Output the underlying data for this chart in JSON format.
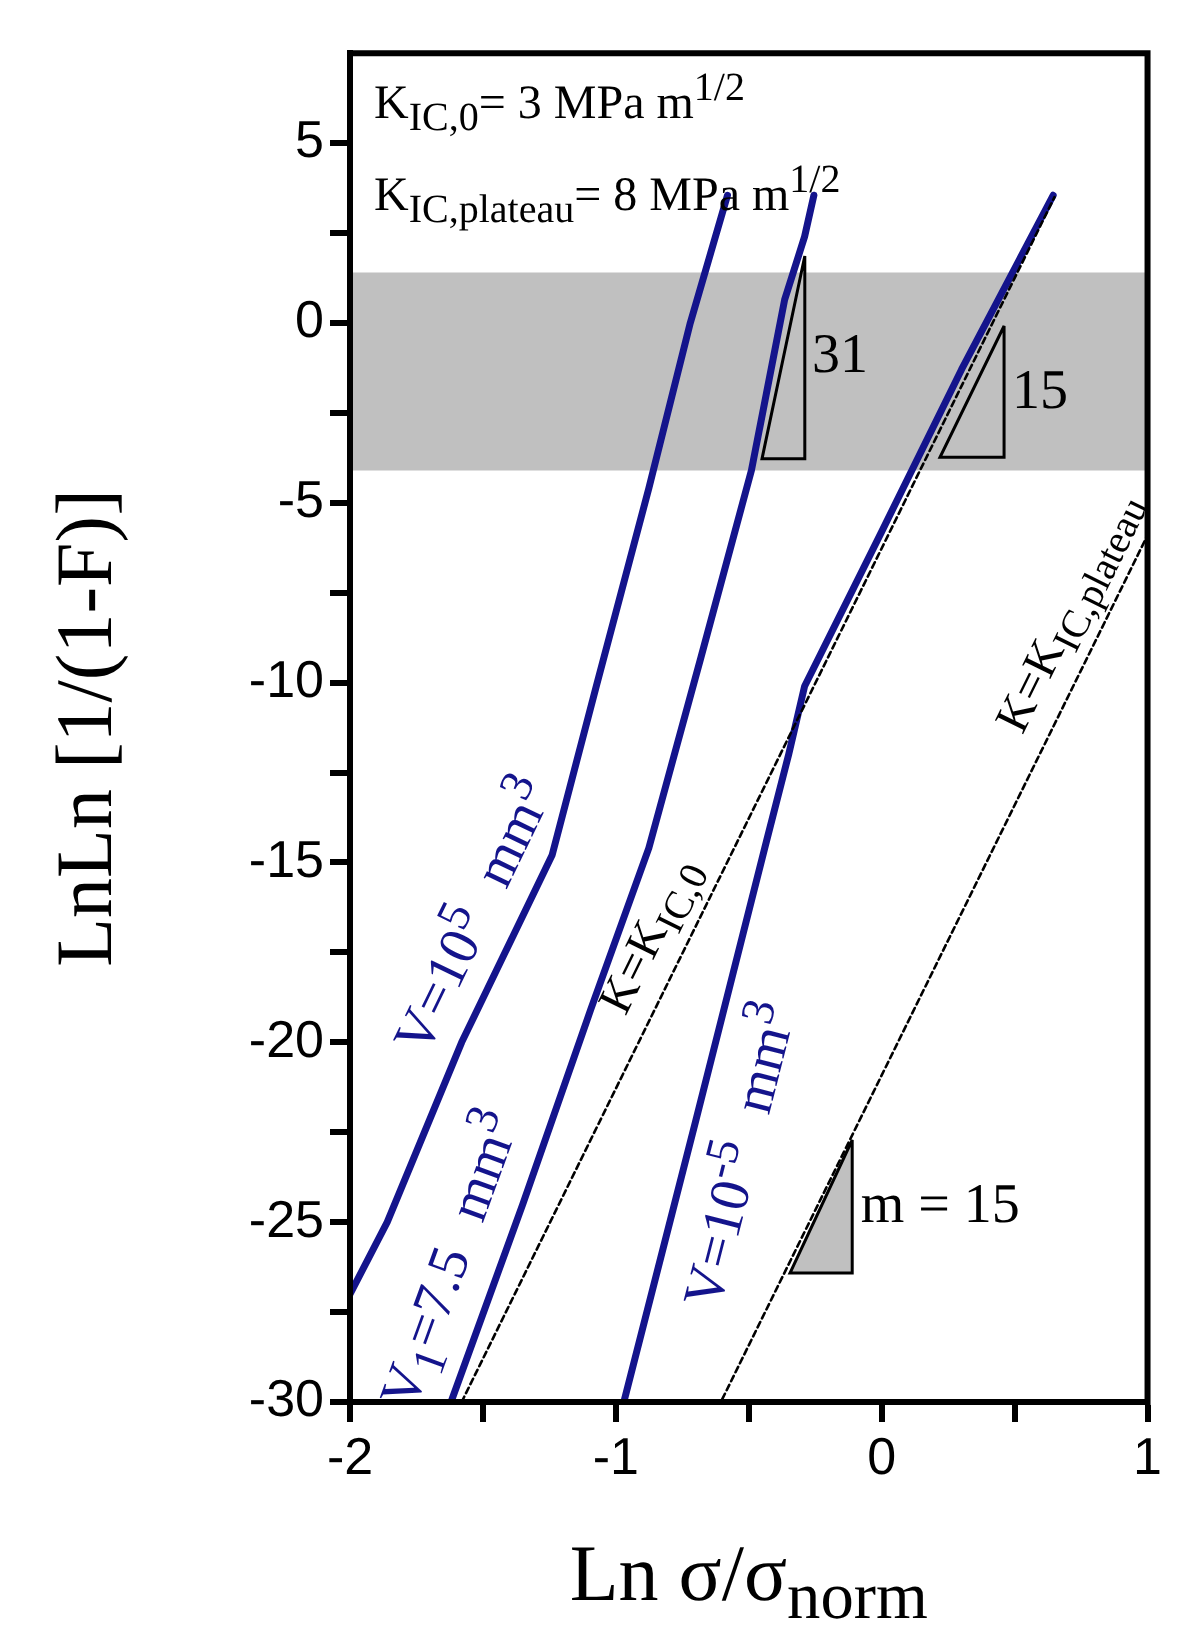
{
  "chart_data": {
    "type": "line",
    "xlabel": "Ln σ/σ$_{norm}$",
    "ylabel": "LnLn [1/(1-F)]",
    "xlim": [
      -2,
      1
    ],
    "xticks": [
      -2,
      {
        "value": -1.5,
        "label": null
      },
      -1,
      {
        "value": -0.5,
        "label": null
      },
      0,
      {
        "value": 0.5,
        "label": null
      },
      1
    ],
    "ylim": [
      -30,
      7.5
    ],
    "yticks": [
      -30,
      {
        "value": -27.5,
        "label": null
      },
      -25,
      {
        "value": -22.5,
        "label": null
      },
      -20,
      {
        "value": -17.5,
        "label": null
      },
      -15,
      {
        "value": -12.5,
        "label": null
      },
      -10,
      {
        "value": -7.5,
        "label": null
      },
      -5,
      {
        "value": -2.5,
        "label": null
      },
      0,
      {
        "value": 2.5,
        "label": null
      },
      5
    ],
    "grid": false,
    "legend": false,
    "marker": "none",
    "series": [
      {
        "name": "V=10$^{5}$ mm$^{3}$",
        "color": "#14148c",
        "x": [
          -2,
          -1.86,
          -1.58,
          -1.24,
          -1.07,
          -0.876,
          -0.72,
          -0.58
        ],
        "values": [
          -27,
          -25,
          -20,
          -14.8,
          -10,
          -4.6,
          0,
          3.55
        ]
      },
      {
        "name": "V$_{1}$=7.5 mm$^{3}$",
        "color": "#14148c",
        "x": [
          -1.62,
          -1.35,
          -1.095,
          -0.876,
          -0.68,
          -0.49,
          -0.365,
          -0.29,
          -0.255
        ],
        "values": [
          -30,
          -24.5,
          -19.1,
          -14.6,
          -9.3,
          -4.1,
          0.65,
          2.4,
          3.55
        ]
      },
      {
        "name": "V=10$^{-5}$ mm$^{3}$",
        "color": "#14148c",
        "x": [
          -0.97,
          -0.7,
          -0.44,
          -0.35,
          -0.29,
          0,
          0.3,
          0.645
        ],
        "values": [
          -30,
          -22.2,
          -14.6,
          -12,
          -10.1,
          -5.8,
          -1.3,
          3.55
        ]
      },
      {
        "name": "K=K$_{IC,0}$",
        "color": "#000000",
        "type": "line",
        "line_style": "dashed",
        "x": [
          -1.58,
          0.65
        ],
        "values": [
          -30,
          3.5
        ]
      },
      {
        "name": "K=K$_{IC,plateau}$",
        "color": "#000000",
        "type": "line",
        "line_style": "dashed",
        "x": [
          -0.605,
          1
        ],
        "values": [
          -30,
          -5.9
        ]
      }
    ],
    "bands": [
      {
        "axis": "y",
        "from": -4.1,
        "to": 1.4,
        "color": "#c0c0c0"
      }
    ],
    "annotations": [
      "K$_{IC,0}$= 3 MPa m$^{1/2}$",
      "K$_{IC,plateau}$= 8 MPa m$^{1/2}$",
      "31",
      "15",
      "m = 15"
    ]
  }
}
